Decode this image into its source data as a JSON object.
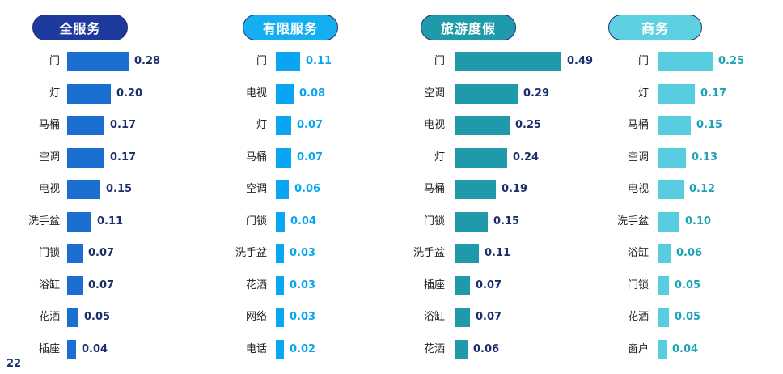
{
  "page_number": "22",
  "chart_data": [
    {
      "type": "bar",
      "orientation": "horizontal",
      "title": "全服务",
      "color": "#1a6fd0",
      "value_color": "#1a2f6b",
      "pill_bg": "#1f3a9e",
      "pill_text": "#ffffff",
      "categories": [
        "门",
        "灯",
        "马桶",
        "空调",
        "电视",
        "洗手盆",
        "门锁",
        "浴缸",
        "花洒",
        "插座"
      ],
      "values": [
        0.28,
        0.2,
        0.17,
        0.17,
        0.15,
        0.11,
        0.07,
        0.07,
        0.05,
        0.04
      ],
      "labels": [
        "0.28",
        "0.20",
        "0.17",
        "0.17",
        "0.15",
        "0.11",
        "0.07",
        "0.07",
        "0.05",
        "0.04"
      ]
    },
    {
      "type": "bar",
      "orientation": "horizontal",
      "title": "有限服务",
      "color": "#0aa5f0",
      "value_color": "#0aa5f0",
      "pill_bg": "#15aef0",
      "pill_text": "#ffffff",
      "categories": [
        "门",
        "电视",
        "灯",
        "马桶",
        "空调",
        "门锁",
        "洗手盆",
        "花洒",
        "网络",
        "电话"
      ],
      "values": [
        0.11,
        0.08,
        0.07,
        0.07,
        0.06,
        0.04,
        0.03,
        0.03,
        0.03,
        0.02
      ],
      "labels": [
        "0.11",
        "0.08",
        "0.07",
        "0.07",
        "0.06",
        "0.04",
        "0.03",
        "0.03",
        "0.03",
        "0.02"
      ]
    },
    {
      "type": "bar",
      "orientation": "horizontal",
      "title": "旅游度假",
      "color": "#1e9aab",
      "value_color": "#1a2f6b",
      "pill_bg": "#1e9aab",
      "pill_text": "#ffffff",
      "categories": [
        "门",
        "空调",
        "电视",
        "灯",
        "马桶",
        "门锁",
        "洗手盆",
        "插座",
        "浴缸",
        "花洒"
      ],
      "values": [
        0.49,
        0.29,
        0.25,
        0.24,
        0.19,
        0.15,
        0.11,
        0.07,
        0.07,
        0.06
      ],
      "labels": [
        "0.49",
        "0.29",
        "0.25",
        "0.24",
        "0.19",
        "0.15",
        "0.11",
        "0.07",
        "0.07",
        "0.06"
      ]
    },
    {
      "type": "bar",
      "orientation": "horizontal",
      "title": "商务",
      "color": "#58cde0",
      "value_color": "#1fa3b8",
      "pill_bg": "#5dd0e2",
      "pill_text": "#ffffff",
      "categories": [
        "门",
        "灯",
        "马桶",
        "空调",
        "电视",
        "洗手盆",
        "浴缸",
        "门锁",
        "花洒",
        "窗户"
      ],
      "values": [
        0.25,
        0.17,
        0.15,
        0.13,
        0.12,
        0.1,
        0.06,
        0.05,
        0.05,
        0.04
      ],
      "labels": [
        "0.25",
        "0.17",
        "0.15",
        "0.13",
        "0.12",
        "0.10",
        "0.06",
        "0.05",
        "0.05",
        "0.04"
      ]
    }
  ]
}
